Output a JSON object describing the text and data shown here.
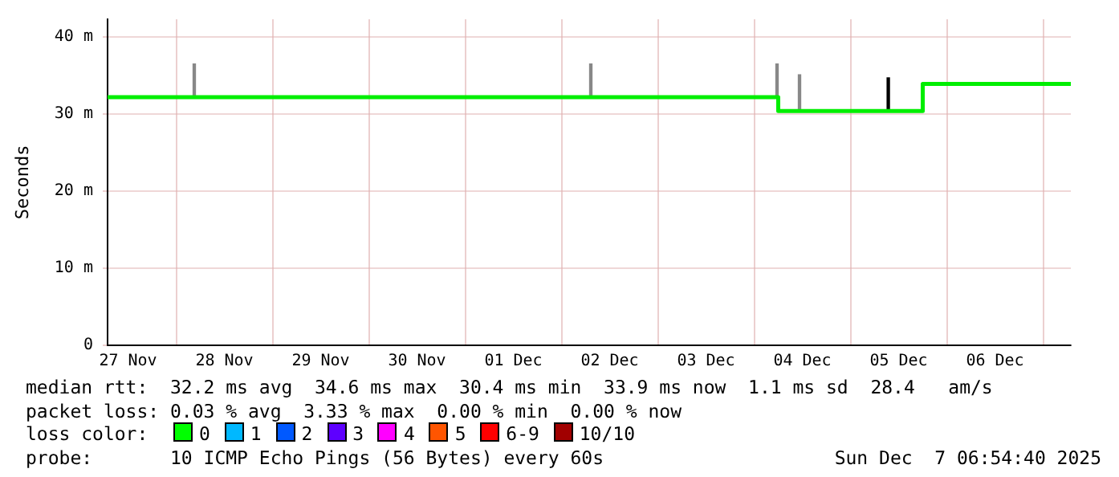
{
  "chart_data": {
    "type": "step",
    "ylabel": "Seconds",
    "xlim": [
      "2025-11-27T06:54",
      "2025-12-07T06:54"
    ],
    "xticks": [
      {
        "value": "2025-11-27T12:00",
        "label": "27 Nov"
      },
      {
        "value": "2025-11-28T12:00",
        "label": "28 Nov"
      },
      {
        "value": "2025-11-29T12:00",
        "label": "29 Nov"
      },
      {
        "value": "2025-11-30T12:00",
        "label": "30 Nov"
      },
      {
        "value": "2025-12-01T12:00",
        "label": "01 Dec"
      },
      {
        "value": "2025-12-02T12:00",
        "label": "02 Dec"
      },
      {
        "value": "2025-12-03T12:00",
        "label": "03 Dec"
      },
      {
        "value": "2025-12-04T12:00",
        "label": "04 Dec"
      },
      {
        "value": "2025-12-05T12:00",
        "label": "05 Dec"
      },
      {
        "value": "2025-12-06T12:00",
        "label": "06 Dec"
      }
    ],
    "ylim": [
      0,
      42.3
    ],
    "yticks": [
      0,
      {
        "value": 10,
        "label": "10 m"
      },
      {
        "value": 20,
        "label": "20 m"
      },
      {
        "value": 30,
        "label": "30 m"
      },
      {
        "value": 40,
        "label": "40 m"
      }
    ],
    "grid": true,
    "legend": false,
    "series": [
      {
        "type": "bar",
        "colors": [
          "#888888",
          "#888888",
          "#888888",
          "#888888",
          "#000000"
        ],
        "x": [
          "2025-11-28T04:30",
          "2025-12-02T07:18",
          "2025-12-04T05:42",
          "2025-12-04T11:18",
          "2025-12-05T09:25"
        ],
        "base": [
          32.2,
          32.2,
          32.2,
          30.4,
          30.4
        ],
        "values": [
          4.3,
          4.3,
          4.3,
          4.7,
          4.3
        ]
      },
      {
        "color": "#00ee00",
        "x": [
          "2025-11-27T06:54",
          "2025-12-04T06:00",
          "2025-12-05T18:00",
          "2025-12-07T06:54"
        ],
        "values": [
          32.2,
          30.4,
          33.9,
          33.9
        ]
      }
    ],
    "annotations": [
      "median rtt:  32.2 ms avg  34.6 ms max  30.4 ms min  33.9 ms now  1.1 ms sd  28.4   am/s",
      "packet loss: 0.03 % avg  3.33 % max  0.00 % min  0.00 % now",
      "loss color:",
      "0",
      "1",
      "2",
      "3",
      "4",
      "5",
      "6-9",
      "10/10",
      "probe:       10 ICMP Echo Pings (56 Bytes) every 60s",
      "Sun Dec  7 06:54:40 2025"
    ]
  }
}
